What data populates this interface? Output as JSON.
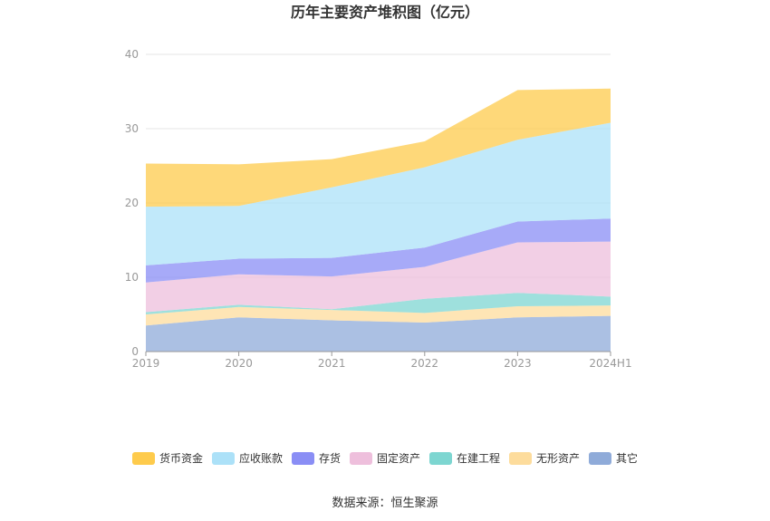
{
  "chart_data": {
    "type": "area",
    "stacked": true,
    "title": "历年主要资产堆积图（亿元）",
    "categories": [
      "2019",
      "2020",
      "2021",
      "2022",
      "2023",
      "2024H1"
    ],
    "ylim": [
      0,
      40
    ],
    "yticks": [
      0,
      10,
      20,
      30,
      40
    ],
    "grid": true,
    "legend_position": "bottom",
    "series": [
      {
        "name": "其它",
        "color": "#8fabd9",
        "values": [
          3.5,
          4.6,
          4.2,
          3.9,
          4.6,
          4.8
        ]
      },
      {
        "name": "无形资产",
        "color": "#fddc9c",
        "values": [
          1.5,
          1.4,
          1.4,
          1.3,
          1.5,
          1.4
        ]
      },
      {
        "name": "在建工程",
        "color": "#7dd6d1",
        "values": [
          0.3,
          0.3,
          0.1,
          1.9,
          1.8,
          1.2
        ]
      },
      {
        "name": "固定资产",
        "color": "#eebfdc",
        "values": [
          4.0,
          4.1,
          4.4,
          4.3,
          6.8,
          7.4
        ]
      },
      {
        "name": "存货",
        "color": "#8a8ef5",
        "values": [
          2.3,
          2.1,
          2.5,
          2.6,
          2.8,
          3.1
        ]
      },
      {
        "name": "应收账款",
        "color": "#ace1f8",
        "values": [
          7.9,
          7.1,
          9.5,
          10.8,
          11.0,
          12.9
        ]
      },
      {
        "name": "货币资金",
        "color": "#fecb4c",
        "values": [
          5.8,
          5.6,
          3.8,
          3.5,
          6.7,
          4.6
        ]
      }
    ],
    "legend_order": [
      "货币资金",
      "应收账款",
      "存货",
      "固定资产",
      "在建工程",
      "无形资产",
      "其它"
    ]
  },
  "footer": {
    "source": "数据来源：恒生聚源"
  }
}
